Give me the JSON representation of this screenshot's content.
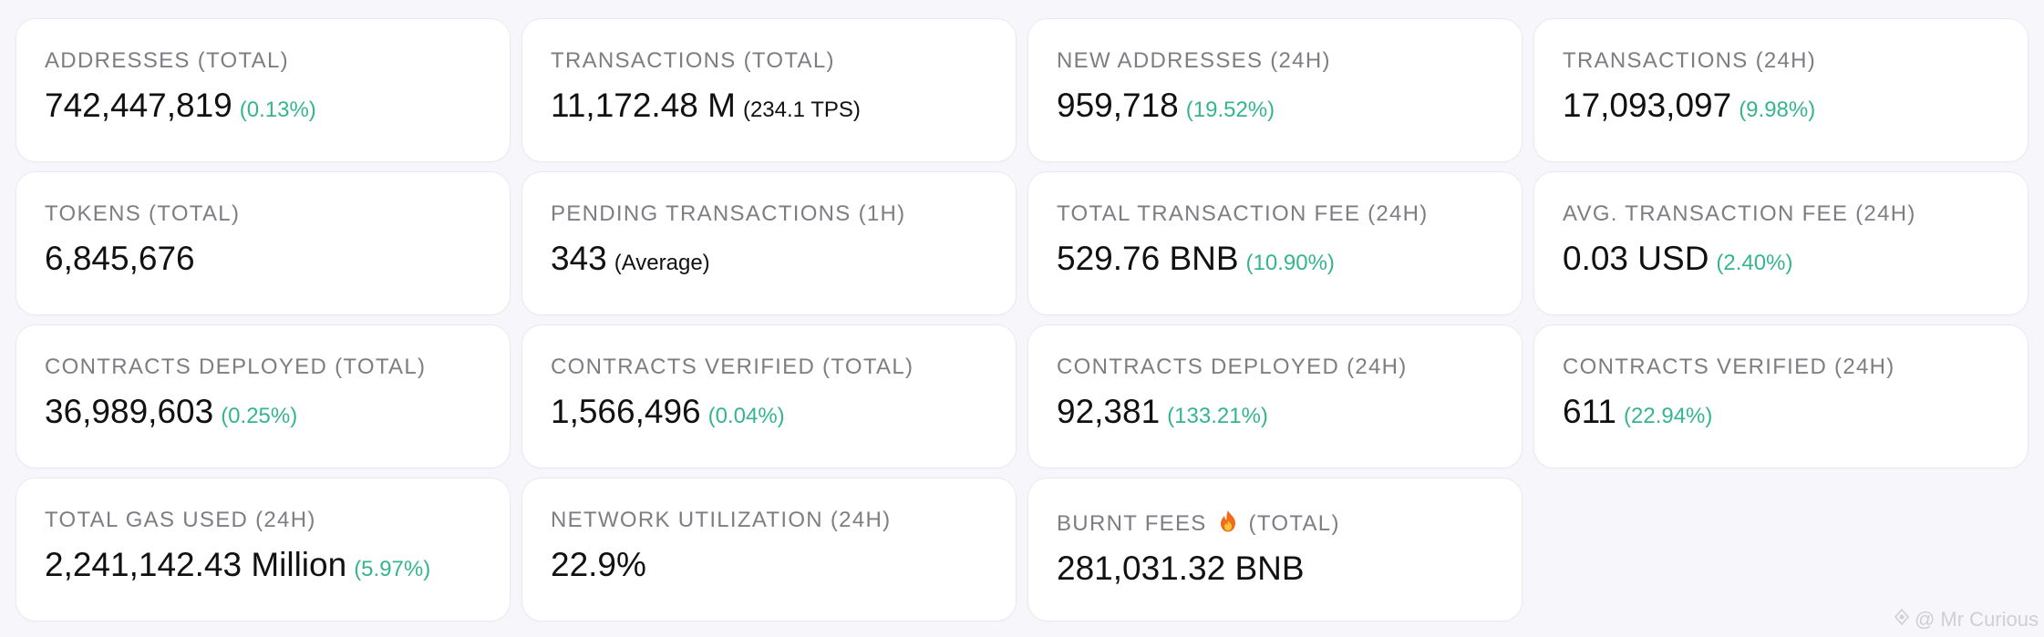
{
  "stats": [
    {
      "label": "ADDRESSES (TOTAL)",
      "value": "742,447,819",
      "change": "(0.13%)",
      "note": null
    },
    {
      "label": "TRANSACTIONS (TOTAL)",
      "value": "11,172.48 M",
      "change": null,
      "note": "(234.1 TPS)"
    },
    {
      "label": "NEW ADDRESSES (24H)",
      "value": "959,718",
      "change": "(19.52%)",
      "note": null
    },
    {
      "label": "TRANSACTIONS (24H)",
      "value": "17,093,097",
      "change": "(9.98%)",
      "note": null
    },
    {
      "label": "TOKENS (TOTAL)",
      "value": "6,845,676",
      "change": null,
      "note": null
    },
    {
      "label": "PENDING TRANSACTIONS (1H)",
      "value": "343",
      "change": null,
      "note": "(Average)"
    },
    {
      "label": "TOTAL TRANSACTION FEE (24H)",
      "value": "529.76 BNB",
      "change": "(10.90%)",
      "note": null
    },
    {
      "label": "AVG. TRANSACTION FEE (24H)",
      "value": "0.03 USD",
      "change": "(2.40%)",
      "note": null
    },
    {
      "label": "CONTRACTS DEPLOYED (TOTAL)",
      "value": "36,989,603",
      "change": "(0.25%)",
      "note": null
    },
    {
      "label": "CONTRACTS VERIFIED (TOTAL)",
      "value": "1,566,496",
      "change": "(0.04%)",
      "note": null
    },
    {
      "label": "CONTRACTS DEPLOYED (24H)",
      "value": "92,381",
      "change": "(133.21%)",
      "note": null
    },
    {
      "label": "CONTRACTS VERIFIED (24H)",
      "value": "611",
      "change": "(22.94%)",
      "note": null
    },
    {
      "label": "TOTAL GAS USED (24H)",
      "value": "2,241,142.43 Million",
      "change": "(5.97%)",
      "note": null
    },
    {
      "label": "NETWORK UTILIZATION (24H)",
      "value": "22.9%",
      "change": null,
      "note": null
    },
    {
      "label_prefix": "BURNT FEES",
      "label_icon": "fire-icon",
      "label_suffix": "(TOTAL)",
      "value": "281,031.32 BNB",
      "change": null,
      "note": null
    }
  ],
  "watermark": "@ Mr Curious",
  "colors": {
    "positive_change": "#35b58d",
    "label": "#7d7d84",
    "value": "#111111",
    "background": "#f7f6fa"
  }
}
